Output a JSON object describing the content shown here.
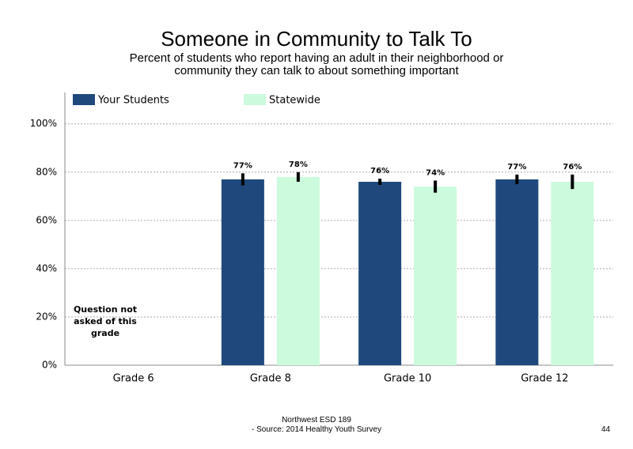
{
  "chart_data": {
    "type": "bar",
    "title": "Someone in Community to Talk To",
    "subtitle": "Percent of students who report having an adult in their neighborhood or community they can talk to about something important",
    "categories": [
      "Grade 6",
      "Grade 8",
      "Grade 10",
      "Grade 12"
    ],
    "series": [
      {
        "name": "Your Students",
        "color": "#1f497d",
        "values": [
          null,
          77,
          76,
          77
        ],
        "errors": [
          null,
          2.5,
          1.3,
          2
        ],
        "value_labels": [
          null,
          "77%",
          "76%",
          "77%"
        ]
      },
      {
        "name": "Statewide",
        "color": "#ccfadc",
        "values": [
          null,
          78,
          74,
          76
        ],
        "errors": [
          null,
          2,
          2.5,
          3
        ],
        "value_labels": [
          null,
          "78%",
          "74%",
          "76%"
        ]
      }
    ],
    "ylim": [
      0,
      113
    ],
    "yticks": [
      {
        "value": 0,
        "label": "0%"
      },
      {
        "value": 20,
        "label": "20%"
      },
      {
        "value": 40,
        "label": "40%"
      },
      {
        "value": 60,
        "label": "60%"
      },
      {
        "value": 80,
        "label": "80%"
      },
      {
        "value": 100,
        "label": "100%"
      }
    ],
    "grid": true,
    "annotation": "Question not asked of this grade",
    "footer": [
      "Northwest ESD  189",
      "- Source: 2014 Healthy  Youth Survey"
    ],
    "page_number": "44"
  }
}
